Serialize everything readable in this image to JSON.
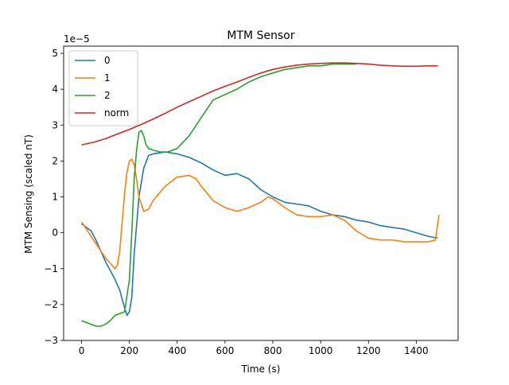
{
  "chart_data": {
    "type": "line",
    "title": "MTM Sensor",
    "xlabel": "Time (s)",
    "ylabel": "MTM Sensing (scaled nT)",
    "y_scale_label": "1e−5",
    "xlim": [
      -75,
      1575
    ],
    "ylim": [
      -3,
      5.2
    ],
    "xticks": [
      0,
      200,
      400,
      600,
      800,
      1000,
      1200,
      1400
    ],
    "yticks": [
      -3,
      -2,
      -1,
      0,
      1,
      2,
      3,
      4,
      5
    ],
    "grid": false,
    "legend_position": "top-left",
    "series": [
      {
        "name": "0",
        "color": "#1f77b4",
        "x": [
          0,
          20,
          40,
          60,
          80,
          100,
          120,
          140,
          160,
          180,
          190,
          200,
          210,
          220,
          240,
          260,
          280,
          300,
          350,
          400,
          450,
          500,
          550,
          600,
          650,
          700,
          750,
          800,
          850,
          900,
          950,
          1000,
          1050,
          1100,
          1150,
          1200,
          1250,
          1300,
          1350,
          1400,
          1450,
          1490
        ],
        "y": [
          0.25,
          0.15,
          0.05,
          -0.2,
          -0.5,
          -0.8,
          -1.05,
          -1.3,
          -1.6,
          -2.1,
          -2.3,
          -2.2,
          -1.8,
          -0.6,
          1.0,
          1.8,
          2.15,
          2.2,
          2.25,
          2.2,
          2.1,
          1.95,
          1.75,
          1.6,
          1.65,
          1.5,
          1.2,
          1.0,
          0.85,
          0.8,
          0.75,
          0.6,
          0.5,
          0.45,
          0.35,
          0.3,
          0.2,
          0.15,
          0.1,
          0.0,
          -0.1,
          -0.15
        ]
      },
      {
        "name": "1",
        "color": "#ff7f0e",
        "x": [
          0,
          20,
          40,
          60,
          80,
          100,
          120,
          140,
          150,
          160,
          170,
          180,
          190,
          200,
          210,
          220,
          230,
          240,
          260,
          280,
          300,
          350,
          400,
          450,
          480,
          500,
          550,
          600,
          650,
          700,
          750,
          780,
          800,
          850,
          900,
          950,
          1000,
          1050,
          1100,
          1150,
          1200,
          1250,
          1300,
          1350,
          1400,
          1450,
          1480,
          1495
        ],
        "y": [
          0.3,
          0.1,
          -0.1,
          -0.3,
          -0.5,
          -0.7,
          -0.85,
          -1.0,
          -0.9,
          -0.5,
          0.3,
          1.1,
          1.7,
          2.0,
          2.05,
          1.9,
          1.5,
          1.0,
          0.6,
          0.65,
          0.9,
          1.3,
          1.55,
          1.6,
          1.5,
          1.3,
          0.9,
          0.7,
          0.6,
          0.7,
          0.85,
          1.0,
          0.95,
          0.7,
          0.5,
          0.45,
          0.45,
          0.5,
          0.35,
          0.05,
          -0.15,
          -0.2,
          -0.2,
          -0.25,
          -0.25,
          -0.25,
          -0.2,
          0.5
        ]
      },
      {
        "name": "2",
        "color": "#2ca02c",
        "x": [
          0,
          20,
          40,
          60,
          80,
          100,
          120,
          140,
          160,
          180,
          200,
          210,
          220,
          230,
          240,
          250,
          260,
          270,
          280,
          300,
          330,
          360,
          400,
          450,
          500,
          550,
          600,
          650,
          700,
          750,
          800,
          850,
          900,
          950,
          1000,
          1050,
          1100,
          1150
        ],
        "y": [
          -2.45,
          -2.5,
          -2.55,
          -2.6,
          -2.6,
          -2.55,
          -2.45,
          -2.3,
          -2.25,
          -2.2,
          -1.3,
          0.0,
          1.5,
          2.3,
          2.8,
          2.85,
          2.7,
          2.45,
          2.35,
          2.3,
          2.25,
          2.25,
          2.35,
          2.7,
          3.2,
          3.7,
          3.85,
          4.0,
          4.2,
          4.35,
          4.45,
          4.55,
          4.6,
          4.65,
          4.65,
          4.7,
          4.7,
          4.7
        ]
      },
      {
        "name": "norm",
        "color": "#d62728",
        "x": [
          0,
          50,
          100,
          150,
          200,
          250,
          300,
          350,
          400,
          450,
          500,
          550,
          600,
          650,
          700,
          750,
          800,
          850,
          900,
          950,
          1000,
          1050,
          1100,
          1150,
          1200,
          1250,
          1300,
          1350,
          1400,
          1450,
          1490
        ],
        "y": [
          2.45,
          2.52,
          2.62,
          2.75,
          2.88,
          3.02,
          3.17,
          3.33,
          3.5,
          3.65,
          3.8,
          3.95,
          4.08,
          4.2,
          4.33,
          4.45,
          4.55,
          4.62,
          4.67,
          4.7,
          4.72,
          4.73,
          4.73,
          4.72,
          4.7,
          4.67,
          4.65,
          4.64,
          4.64,
          4.65,
          4.65
        ]
      }
    ]
  }
}
